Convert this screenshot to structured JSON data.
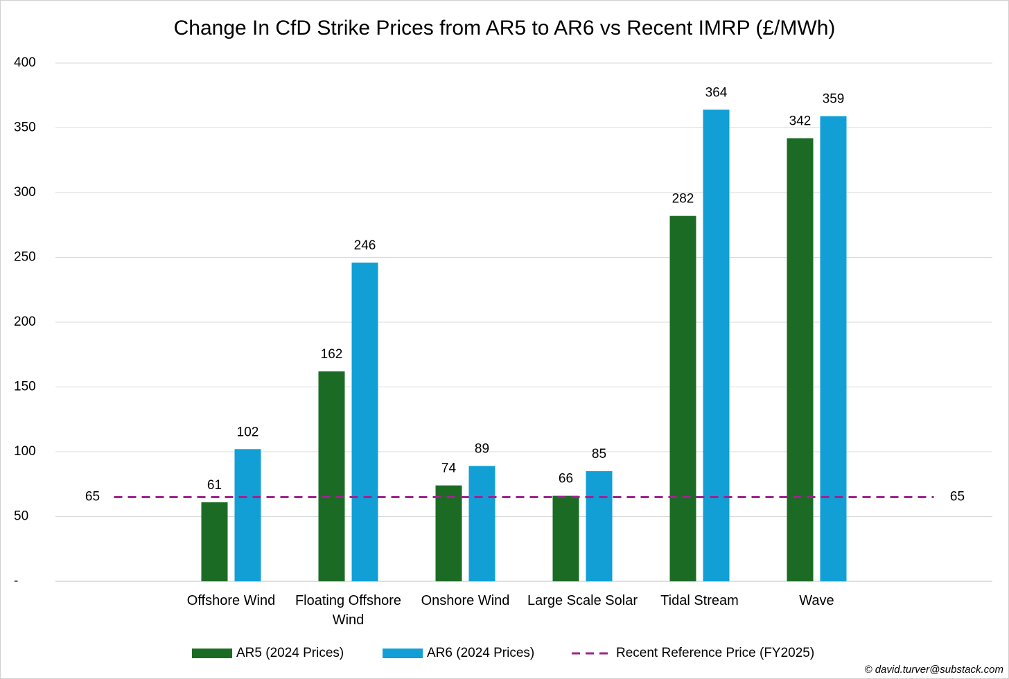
{
  "chart_data": {
    "type": "bar",
    "title": "Change In CfD Strike Prices from AR5 to AR6 vs Recent IMRP (£/MWh)",
    "categories": [
      null,
      "Offshore Wind",
      "Floating Offshore Wind",
      "Onshore Wind",
      "Large Scale Solar",
      "Tidal Stream",
      "Wave",
      null
    ],
    "series": [
      {
        "name": "AR5 (2024 Prices)",
        "color": "#1b6b24",
        "values": [
          null,
          61,
          162,
          74,
          66,
          282,
          342,
          null
        ]
      },
      {
        "name": "AR6 (2024 Prices)",
        "color": "#119fd6",
        "values": [
          null,
          102,
          246,
          89,
          85,
          364,
          359,
          null
        ]
      },
      {
        "name": "Recent Reference Price (FY2025)",
        "color": "#a0238f",
        "type": "line",
        "dashed": true,
        "values": [
          65,
          65,
          65,
          65,
          65,
          65,
          65,
          65
        ]
      }
    ],
    "ylim": [
      0,
      400
    ],
    "yticks": [
      {
        "value": 0,
        "label": "-"
      },
      50,
      100,
      150,
      200,
      250,
      300,
      350,
      400
    ],
    "grid": true,
    "legend": "bottom",
    "footer": "© david.turver@substack.com"
  }
}
